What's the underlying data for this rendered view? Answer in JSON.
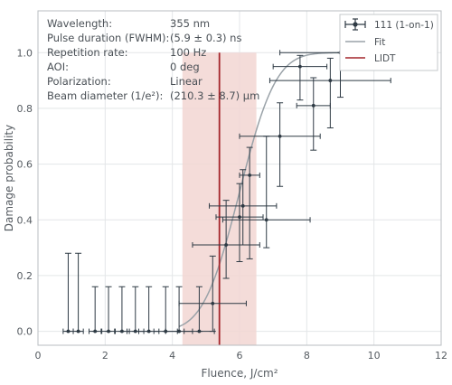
{
  "chart_data": {
    "type": "scatter",
    "xlabel": "Fluence, J/cm²",
    "ylabel": "Damage probability",
    "xlim": [
      0,
      12
    ],
    "ylim": [
      -0.05,
      1.15
    ],
    "x_ticks": [
      0,
      2,
      4,
      6,
      8,
      10,
      12
    ],
    "y_ticks": [
      0.0,
      0.2,
      0.4,
      0.6,
      0.8,
      1.0
    ],
    "x_tick_labels": [
      "0",
      "2",
      "4",
      "6",
      "8",
      "10",
      "12"
    ],
    "y_tick_labels": [
      "0.0",
      "0.2",
      "0.4",
      "0.6",
      "0.8",
      "1.0"
    ],
    "grid": true,
    "legend_position": "top-right",
    "parameters": [
      {
        "label": "Wavelength:",
        "value": "355 nm"
      },
      {
        "label": "Pulse duration (FWHM):",
        "value": "(5.9 ± 0.3) ns"
      },
      {
        "label": "Repetition rate:",
        "value": "100 Hz"
      },
      {
        "label": "AOI:",
        "value": "0 deg"
      },
      {
        "label": "Polarization:",
        "value": "Linear"
      },
      {
        "label": "Beam diameter (1/e²):",
        "value": "(210.3 ± 8.7) µm"
      }
    ],
    "series": [
      {
        "name": "111 (1-on-1)",
        "type": "errorbar",
        "color": "#2e3a44",
        "points": [
          {
            "x": 0.9,
            "y": 0.0,
            "xerr": 0.15,
            "yerr_minus": 0.0,
            "yerr_plus": 0.28
          },
          {
            "x": 1.2,
            "y": 0.0,
            "xerr": 0.15,
            "yerr_minus": 0.0,
            "yerr_plus": 0.28
          },
          {
            "x": 1.7,
            "y": 0.0,
            "xerr": 0.18,
            "yerr_minus": 0.0,
            "yerr_plus": 0.16
          },
          {
            "x": 2.1,
            "y": 0.0,
            "xerr": 0.2,
            "yerr_minus": 0.0,
            "yerr_plus": 0.16
          },
          {
            "x": 2.5,
            "y": 0.0,
            "xerr": 0.22,
            "yerr_minus": 0.0,
            "yerr_plus": 0.16
          },
          {
            "x": 2.9,
            "y": 0.0,
            "xerr": 0.25,
            "yerr_minus": 0.0,
            "yerr_plus": 0.16
          },
          {
            "x": 3.3,
            "y": 0.0,
            "xerr": 0.3,
            "yerr_minus": 0.0,
            "yerr_plus": 0.16
          },
          {
            "x": 3.8,
            "y": 0.0,
            "xerr": 0.35,
            "yerr_minus": 0.0,
            "yerr_plus": 0.16
          },
          {
            "x": 4.2,
            "y": 0.0,
            "xerr": 0.4,
            "yerr_minus": 0.0,
            "yerr_plus": 0.16
          },
          {
            "x": 4.8,
            "y": 0.0,
            "xerr": 0.45,
            "yerr_minus": 0.0,
            "yerr_plus": 0.16
          },
          {
            "x": 5.2,
            "y": 0.1,
            "xerr": 1.0,
            "yerr_minus": 0.1,
            "yerr_plus": 0.17
          },
          {
            "x": 5.6,
            "y": 0.31,
            "xerr": 1.0,
            "yerr_minus": 0.12,
            "yerr_plus": 0.16
          },
          {
            "x": 6.0,
            "y": 0.41,
            "xerr": 0.7,
            "yerr_minus": 0.16,
            "yerr_plus": 0.12
          },
          {
            "x": 6.1,
            "y": 0.45,
            "xerr": 1.0,
            "yerr_minus": 0.14,
            "yerr_plus": 0.13
          },
          {
            "x": 6.3,
            "y": 0.56,
            "xerr": 0.3,
            "yerr_minus": 0.3,
            "yerr_plus": 0.1
          },
          {
            "x": 6.8,
            "y": 0.4,
            "xerr": 1.3,
            "yerr_minus": 0.1,
            "yerr_plus": 0.3
          },
          {
            "x": 7.2,
            "y": 0.7,
            "xerr": 1.2,
            "yerr_minus": 0.18,
            "yerr_plus": 0.12
          },
          {
            "x": 7.8,
            "y": 0.95,
            "xerr": 0.8,
            "yerr_minus": 0.12,
            "yerr_plus": 0.04
          },
          {
            "x": 8.2,
            "y": 0.81,
            "xerr": 0.5,
            "yerr_minus": 0.16,
            "yerr_plus": 0.1
          },
          {
            "x": 8.7,
            "y": 0.9,
            "xerr": 1.8,
            "yerr_minus": 0.17,
            "yerr_plus": 0.08
          },
          {
            "x": 9.0,
            "y": 1.0,
            "xerr": 1.8,
            "yerr_minus": 0.16,
            "yerr_plus": 0.0
          }
        ]
      },
      {
        "name": "Fit",
        "type": "line",
        "color": "#9aa2a8",
        "model": "normal_cdf",
        "center": 6.0,
        "width": 0.85,
        "x_range": [
          4.2,
          9.6
        ]
      },
      {
        "name": "LIDT",
        "type": "vline",
        "color": "#a4262c",
        "x": 5.4,
        "band": [
          4.3,
          6.5
        ],
        "band_color": "#f2d6d2"
      }
    ]
  }
}
